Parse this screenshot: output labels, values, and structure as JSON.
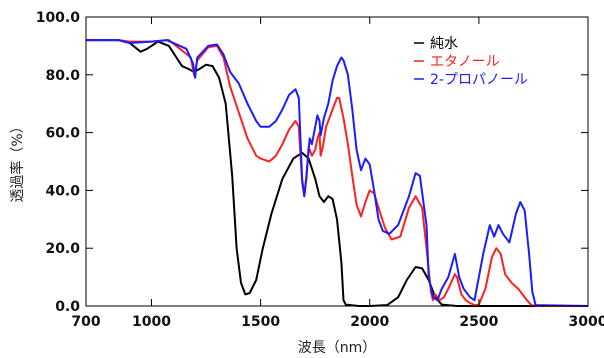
{
  "chart_data": {
    "type": "line",
    "title": "",
    "xlabel": "波長（nm）",
    "ylabel": "透過率（%）",
    "xlim": [
      700,
      3000
    ],
    "ylim": [
      0,
      100
    ],
    "x_ticks": [
      "700",
      "1000",
      "1500",
      "2000",
      "2500",
      "3000"
    ],
    "x_tick_values": [
      700,
      1000,
      1500,
      2000,
      2500,
      3000
    ],
    "y_ticks": [
      "0.0",
      "20.0",
      "40.0",
      "60.0",
      "80.0",
      "100.0"
    ],
    "y_tick_values": [
      0,
      20,
      40,
      60,
      80,
      100
    ],
    "grid": false,
    "legend_position": "top-right",
    "series": [
      {
        "name": "純水",
        "color": "#000000",
        "points": [
          [
            700,
            92
          ],
          [
            850,
            92
          ],
          [
            900,
            91
          ],
          [
            950,
            88
          ],
          [
            980,
            89
          ],
          [
            1030,
            91.5
          ],
          [
            1080,
            90
          ],
          [
            1140,
            83
          ],
          [
            1170,
            82
          ],
          [
            1195,
            81
          ],
          [
            1220,
            82
          ],
          [
            1250,
            83.5
          ],
          [
            1280,
            83
          ],
          [
            1310,
            79
          ],
          [
            1340,
            70
          ],
          [
            1370,
            45
          ],
          [
            1390,
            20
          ],
          [
            1410,
            8
          ],
          [
            1430,
            4
          ],
          [
            1450,
            4.5
          ],
          [
            1480,
            9
          ],
          [
            1510,
            20
          ],
          [
            1550,
            32
          ],
          [
            1600,
            44
          ],
          [
            1650,
            51
          ],
          [
            1690,
            53
          ],
          [
            1720,
            51
          ],
          [
            1750,
            44
          ],
          [
            1770,
            38
          ],
          [
            1790,
            36
          ],
          [
            1810,
            38
          ],
          [
            1830,
            37
          ],
          [
            1850,
            30
          ],
          [
            1870,
            15
          ],
          [
            1880,
            2
          ],
          [
            1890,
            0.5
          ],
          [
            1950,
            0
          ],
          [
            2000,
            0
          ],
          [
            2080,
            0.3
          ],
          [
            2130,
            3
          ],
          [
            2170,
            9
          ],
          [
            2210,
            13.5
          ],
          [
            2240,
            13
          ],
          [
            2270,
            9
          ],
          [
            2300,
            3
          ],
          [
            2330,
            0.5
          ],
          [
            2400,
            0
          ],
          [
            3000,
            0
          ]
        ]
      },
      {
        "name": "エタノール",
        "color": "#ff2020",
        "points": [
          [
            700,
            92
          ],
          [
            850,
            92
          ],
          [
            900,
            91.5
          ],
          [
            1000,
            91.5
          ],
          [
            1080,
            92
          ],
          [
            1130,
            89
          ],
          [
            1180,
            86
          ],
          [
            1195,
            80
          ],
          [
            1210,
            85
          ],
          [
            1260,
            89.5
          ],
          [
            1300,
            90
          ],
          [
            1330,
            86
          ],
          [
            1360,
            76
          ],
          [
            1400,
            67
          ],
          [
            1440,
            58
          ],
          [
            1480,
            52
          ],
          [
            1500,
            51
          ],
          [
            1540,
            50
          ],
          [
            1570,
            52
          ],
          [
            1600,
            56
          ],
          [
            1630,
            61
          ],
          [
            1660,
            64
          ],
          [
            1675,
            62
          ],
          [
            1690,
            43
          ],
          [
            1700,
            38
          ],
          [
            1710,
            44
          ],
          [
            1720,
            55
          ],
          [
            1735,
            52
          ],
          [
            1750,
            54
          ],
          [
            1760,
            58
          ],
          [
            1770,
            60
          ],
          [
            1775,
            52
          ],
          [
            1785,
            55
          ],
          [
            1800,
            62
          ],
          [
            1830,
            68
          ],
          [
            1850,
            72
          ],
          [
            1860,
            72
          ],
          [
            1880,
            65
          ],
          [
            1900,
            56
          ],
          [
            1920,
            45
          ],
          [
            1940,
            35
          ],
          [
            1960,
            31
          ],
          [
            1980,
            36
          ],
          [
            2000,
            40
          ],
          [
            2020,
            39
          ],
          [
            2040,
            34
          ],
          [
            2070,
            27
          ],
          [
            2100,
            23
          ],
          [
            2140,
            24
          ],
          [
            2180,
            34
          ],
          [
            2210,
            38
          ],
          [
            2240,
            34
          ],
          [
            2260,
            20
          ],
          [
            2280,
            5
          ],
          [
            2290,
            2
          ],
          [
            2300,
            4
          ],
          [
            2320,
            2
          ],
          [
            2340,
            3
          ],
          [
            2360,
            6
          ],
          [
            2390,
            11
          ],
          [
            2400,
            10
          ],
          [
            2410,
            7
          ],
          [
            2420,
            4
          ],
          [
            2440,
            2
          ],
          [
            2460,
            1
          ],
          [
            2480,
            0.3
          ],
          [
            2500,
            0.5
          ],
          [
            2530,
            6
          ],
          [
            2560,
            17
          ],
          [
            2580,
            20
          ],
          [
            2600,
            18
          ],
          [
            2620,
            11
          ],
          [
            2650,
            8
          ],
          [
            2680,
            6
          ],
          [
            2700,
            4
          ],
          [
            2720,
            2
          ],
          [
            2740,
            0.3
          ],
          [
            2760,
            0
          ],
          [
            3000,
            0
          ]
        ]
      },
      {
        "name": "2-プロパノール",
        "color": "#1c1cff",
        "points": [
          [
            700,
            92
          ],
          [
            850,
            92
          ],
          [
            900,
            91
          ],
          [
            1000,
            91.5
          ],
          [
            1070,
            92
          ],
          [
            1130,
            90
          ],
          [
            1160,
            89
          ],
          [
            1190,
            84
          ],
          [
            1200,
            79
          ],
          [
            1210,
            86
          ],
          [
            1260,
            90
          ],
          [
            1300,
            90.5
          ],
          [
            1330,
            87
          ],
          [
            1360,
            81
          ],
          [
            1400,
            77
          ],
          [
            1440,
            70
          ],
          [
            1480,
            64
          ],
          [
            1500,
            62
          ],
          [
            1540,
            62
          ],
          [
            1570,
            64
          ],
          [
            1600,
            68
          ],
          [
            1630,
            73
          ],
          [
            1660,
            75
          ],
          [
            1675,
            72
          ],
          [
            1690,
            44
          ],
          [
            1700,
            38
          ],
          [
            1710,
            45
          ],
          [
            1725,
            58
          ],
          [
            1735,
            56
          ],
          [
            1750,
            62
          ],
          [
            1760,
            66
          ],
          [
            1770,
            64
          ],
          [
            1775,
            59
          ],
          [
            1790,
            65
          ],
          [
            1810,
            70
          ],
          [
            1830,
            78
          ],
          [
            1850,
            83
          ],
          [
            1870,
            86
          ],
          [
            1880,
            85
          ],
          [
            1900,
            80
          ],
          [
            1920,
            68
          ],
          [
            1940,
            54
          ],
          [
            1960,
            47
          ],
          [
            1980,
            51
          ],
          [
            2000,
            49
          ],
          [
            2020,
            40
          ],
          [
            2040,
            30
          ],
          [
            2060,
            26
          ],
          [
            2090,
            25
          ],
          [
            2130,
            28
          ],
          [
            2180,
            38
          ],
          [
            2210,
            46
          ],
          [
            2230,
            45
          ],
          [
            2260,
            28
          ],
          [
            2270,
            10
          ],
          [
            2290,
            3
          ],
          [
            2310,
            2
          ],
          [
            2330,
            6
          ],
          [
            2360,
            10
          ],
          [
            2390,
            18
          ],
          [
            2410,
            10
          ],
          [
            2430,
            6
          ],
          [
            2460,
            3
          ],
          [
            2480,
            2
          ],
          [
            2520,
            18
          ],
          [
            2550,
            28
          ],
          [
            2570,
            24
          ],
          [
            2590,
            28
          ],
          [
            2610,
            25
          ],
          [
            2640,
            22
          ],
          [
            2670,
            32
          ],
          [
            2690,
            36
          ],
          [
            2710,
            33
          ],
          [
            2730,
            18
          ],
          [
            2745,
            5
          ],
          [
            2760,
            0.3
          ],
          [
            3000,
            0
          ]
        ]
      }
    ]
  }
}
